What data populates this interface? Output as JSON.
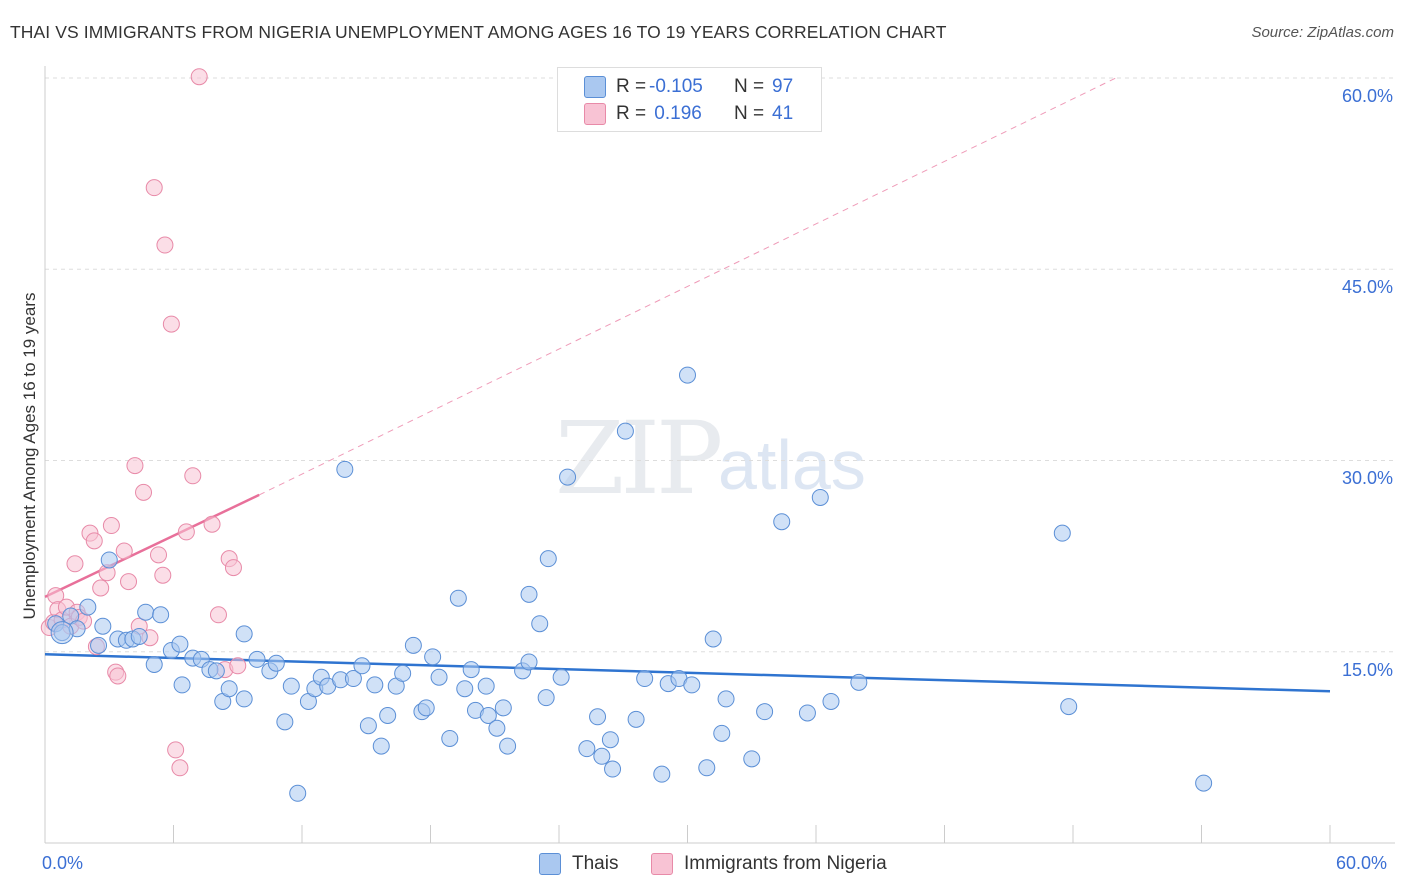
{
  "title": "THAI VS IMMIGRANTS FROM NIGERIA UNEMPLOYMENT AMONG AGES 16 TO 19 YEARS CORRELATION CHART",
  "source": "Source: ZipAtlas.com",
  "watermark": {
    "zip": "ZIP",
    "atlas": "atlas"
  },
  "colors": {
    "blue_fill": "#aac8f0",
    "blue_stroke": "#5b8fd6",
    "blue_line": "#2f74d0",
    "pink_fill": "#f8c3d4",
    "pink_stroke": "#e88aa8",
    "pink_line": "#e8709a",
    "grid": "#dddddd",
    "tick_text": "#3b6fd4"
  },
  "legend": {
    "rows": [
      {
        "r_label": "R = ",
        "r_value": "-0.105",
        "n_label": "N = ",
        "n_value": "97"
      },
      {
        "r_label": "R = ",
        "r_value": " 0.196",
        "n_label": "N = ",
        "n_value": "41"
      }
    ]
  },
  "bottom_legend": [
    {
      "label": "Thais"
    },
    {
      "label": "Immigrants from Nigeria"
    }
  ],
  "axes": {
    "x_min_label": "0.0%",
    "x_max_label": "60.0%",
    "y_tick_labels": [
      "15.0%",
      "30.0%",
      "45.0%",
      "60.0%"
    ],
    "ylabel": "Unemployment Among Ages 16 to 19 years"
  },
  "chart_data": {
    "type": "scatter",
    "title": "THAI VS IMMIGRANTS FROM NIGERIA UNEMPLOYMENT AMONG AGES 16 TO 19 YEARS CORRELATION CHART",
    "xlabel": "",
    "ylabel": "Unemployment Among Ages 16 to 19 years",
    "xlim": [
      0,
      60
    ],
    "ylim": [
      0,
      60
    ],
    "y_ticks": [
      15,
      30,
      45,
      60
    ],
    "series": [
      {
        "name": "Thais",
        "r": -0.105,
        "n": 97,
        "trend": {
          "x0": 0,
          "y0": 14.8,
          "x1": 60,
          "y1": 11.9
        },
        "points": [
          [
            0.5,
            17.2
          ],
          [
            0.8,
            16.5
          ],
          [
            1.2,
            17.8
          ],
          [
            1.5,
            16.8
          ],
          [
            2.0,
            18.5
          ],
          [
            2.5,
            15.5
          ],
          [
            2.7,
            17.0
          ],
          [
            3.0,
            22.2
          ],
          [
            3.4,
            16.0
          ],
          [
            3.8,
            15.9
          ],
          [
            4.1,
            16.0
          ],
          [
            4.4,
            16.2
          ],
          [
            4.7,
            18.1
          ],
          [
            5.1,
            14.0
          ],
          [
            5.4,
            17.9
          ],
          [
            5.9,
            15.1
          ],
          [
            6.3,
            15.6
          ],
          [
            6.4,
            12.4
          ],
          [
            6.9,
            14.5
          ],
          [
            7.3,
            14.4
          ],
          [
            7.7,
            13.6
          ],
          [
            8.0,
            13.5
          ],
          [
            8.3,
            11.1
          ],
          [
            8.6,
            12.1
          ],
          [
            9.3,
            11.3
          ],
          [
            9.3,
            16.4
          ],
          [
            9.9,
            14.4
          ],
          [
            10.5,
            13.5
          ],
          [
            10.8,
            14.1
          ],
          [
            11.2,
            9.5
          ],
          [
            11.5,
            12.3
          ],
          [
            11.8,
            3.9
          ],
          [
            12.3,
            11.1
          ],
          [
            12.6,
            12.1
          ],
          [
            12.9,
            13.0
          ],
          [
            13.2,
            12.3
          ],
          [
            13.8,
            12.8
          ],
          [
            14.0,
            29.3
          ],
          [
            14.4,
            12.9
          ],
          [
            14.8,
            13.9
          ],
          [
            15.1,
            9.2
          ],
          [
            15.4,
            12.4
          ],
          [
            15.7,
            7.6
          ],
          [
            16.0,
            10.0
          ],
          [
            16.4,
            12.3
          ],
          [
            16.7,
            13.3
          ],
          [
            17.2,
            15.5
          ],
          [
            17.6,
            10.3
          ],
          [
            17.8,
            10.6
          ],
          [
            18.1,
            14.6
          ],
          [
            18.4,
            13.0
          ],
          [
            18.9,
            8.2
          ],
          [
            19.3,
            19.2
          ],
          [
            19.6,
            12.1
          ],
          [
            19.9,
            13.6
          ],
          [
            20.1,
            10.4
          ],
          [
            20.6,
            12.3
          ],
          [
            20.7,
            10.0
          ],
          [
            21.1,
            9.0
          ],
          [
            21.4,
            10.6
          ],
          [
            21.6,
            7.6
          ],
          [
            22.3,
            13.5
          ],
          [
            22.6,
            19.5
          ],
          [
            22.6,
            14.2
          ],
          [
            23.1,
            17.2
          ],
          [
            23.4,
            11.4
          ],
          [
            23.5,
            22.3
          ],
          [
            24.1,
            13.0
          ],
          [
            24.4,
            28.7
          ],
          [
            25.3,
            7.4
          ],
          [
            25.8,
            9.9
          ],
          [
            26.0,
            6.8
          ],
          [
            26.4,
            8.1
          ],
          [
            26.5,
            5.8
          ],
          [
            27.1,
            32.3
          ],
          [
            27.6,
            9.7
          ],
          [
            28.0,
            12.9
          ],
          [
            28.8,
            5.4
          ],
          [
            29.1,
            12.5
          ],
          [
            29.6,
            12.9
          ],
          [
            30.0,
            36.7
          ],
          [
            30.2,
            12.4
          ],
          [
            30.9,
            5.9
          ],
          [
            31.2,
            16.0
          ],
          [
            31.6,
            8.6
          ],
          [
            31.8,
            11.3
          ],
          [
            33.0,
            6.6
          ],
          [
            33.6,
            10.3
          ],
          [
            34.4,
            25.2
          ],
          [
            35.6,
            10.2
          ],
          [
            36.2,
            27.1
          ],
          [
            36.7,
            11.1
          ],
          [
            38.0,
            12.6
          ],
          [
            47.5,
            24.3
          ],
          [
            47.8,
            10.7
          ],
          [
            54.1,
            4.7
          ]
        ],
        "large_points": [
          [
            0.8,
            16.5
          ]
        ]
      },
      {
        "name": "Immigrants from Nigeria",
        "r": 0.196,
        "n": 41,
        "trend": {
          "x0": 0,
          "y0": 19.3,
          "x1": 10,
          "y1": 27.3,
          "dashed_to_x": 50,
          "dashed_to_y": 60
        },
        "points": [
          [
            0.2,
            16.9
          ],
          [
            0.4,
            17.3
          ],
          [
            0.5,
            19.4
          ],
          [
            0.6,
            18.3
          ],
          [
            0.8,
            17.5
          ],
          [
            1.0,
            18.5
          ],
          [
            1.2,
            17.0
          ],
          [
            1.4,
            21.9
          ],
          [
            1.5,
            18.1
          ],
          [
            1.6,
            17.7
          ],
          [
            1.8,
            17.4
          ],
          [
            2.1,
            24.3
          ],
          [
            2.3,
            23.7
          ],
          [
            2.4,
            15.4
          ],
          [
            2.6,
            20.0
          ],
          [
            2.9,
            21.2
          ],
          [
            3.1,
            24.9
          ],
          [
            3.3,
            13.4
          ],
          [
            3.4,
            13.1
          ],
          [
            3.7,
            22.9
          ],
          [
            3.9,
            20.5
          ],
          [
            4.2,
            29.6
          ],
          [
            4.4,
            17.0
          ],
          [
            4.6,
            27.5
          ],
          [
            4.9,
            16.1
          ],
          [
            5.1,
            51.4
          ],
          [
            5.3,
            22.6
          ],
          [
            5.5,
            21.0
          ],
          [
            5.6,
            46.9
          ],
          [
            5.9,
            40.7
          ],
          [
            6.1,
            7.3
          ],
          [
            6.3,
            5.9
          ],
          [
            6.6,
            24.4
          ],
          [
            6.9,
            28.8
          ],
          [
            7.2,
            60.1
          ],
          [
            7.8,
            25.0
          ],
          [
            8.1,
            17.9
          ],
          [
            8.4,
            13.6
          ],
          [
            8.6,
            22.3
          ],
          [
            8.8,
            21.6
          ],
          [
            9.0,
            13.9
          ]
        ]
      }
    ]
  }
}
